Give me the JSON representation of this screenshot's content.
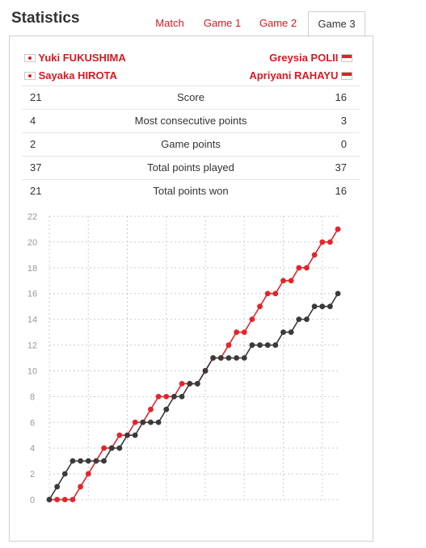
{
  "header": {
    "title": "Statistics"
  },
  "tabs": [
    {
      "label": "Match",
      "active": false
    },
    {
      "label": "Game 1",
      "active": false
    },
    {
      "label": "Game 2",
      "active": false
    },
    {
      "label": "Game 3",
      "active": true
    }
  ],
  "players": {
    "left": [
      {
        "name": "Yuki FUKUSHIMA",
        "flag": "japan-flag-icon"
      },
      {
        "name": "Sayaka HIROTA",
        "flag": "japan-flag-icon"
      }
    ],
    "right": [
      {
        "name": "Greysia POLII",
        "flag": "indonesia-flag-icon"
      },
      {
        "name": "Apriyani RAHAYU",
        "flag": "indonesia-flag-icon"
      }
    ]
  },
  "stats": [
    {
      "label": "Score",
      "left": "21",
      "right": "16"
    },
    {
      "label": "Most consecutive points",
      "left": "4",
      "right": "3"
    },
    {
      "label": "Game points",
      "left": "2",
      "right": "0"
    },
    {
      "label": "Total points played",
      "left": "37",
      "right": "37"
    },
    {
      "label": "Total points won",
      "left": "21",
      "right": "16"
    }
  ],
  "colors": {
    "accent": "#d71920",
    "left_series": "#e3242b",
    "right_series": "#3a3a3a",
    "grid": "#cccccc"
  },
  "chart_data": {
    "type": "line",
    "title": "",
    "xlabel": "",
    "ylabel": "",
    "ylim": [
      0,
      22
    ],
    "y_ticks": [
      0,
      2,
      4,
      6,
      8,
      10,
      12,
      14,
      16,
      18,
      20,
      22
    ],
    "grid": true,
    "x": [
      0,
      1,
      2,
      3,
      4,
      5,
      6,
      7,
      8,
      9,
      10,
      11,
      12,
      13,
      14,
      15,
      16,
      17,
      18,
      19,
      20,
      21,
      22,
      23,
      24,
      25,
      26,
      27,
      28,
      29,
      30,
      31,
      32,
      33,
      34,
      35,
      36,
      37
    ],
    "series": [
      {
        "color": "#e3242b",
        "values": [
          0,
          0,
          0,
          0,
          1,
          2,
          3,
          4,
          4,
          5,
          5,
          6,
          6,
          7,
          8,
          8,
          8,
          9,
          9,
          9,
          10,
          11,
          11,
          12,
          13,
          13,
          14,
          15,
          16,
          16,
          17,
          17,
          18,
          18,
          19,
          20,
          20,
          21
        ]
      },
      {
        "color": "#3a3a3a",
        "values": [
          0,
          1,
          2,
          3,
          3,
          3,
          3,
          3,
          4,
          4,
          5,
          5,
          6,
          6,
          6,
          7,
          8,
          8,
          9,
          9,
          10,
          11,
          11,
          11,
          11,
          11,
          12,
          12,
          12,
          12,
          13,
          13,
          14,
          14,
          15,
          15,
          15,
          16
        ]
      }
    ]
  }
}
